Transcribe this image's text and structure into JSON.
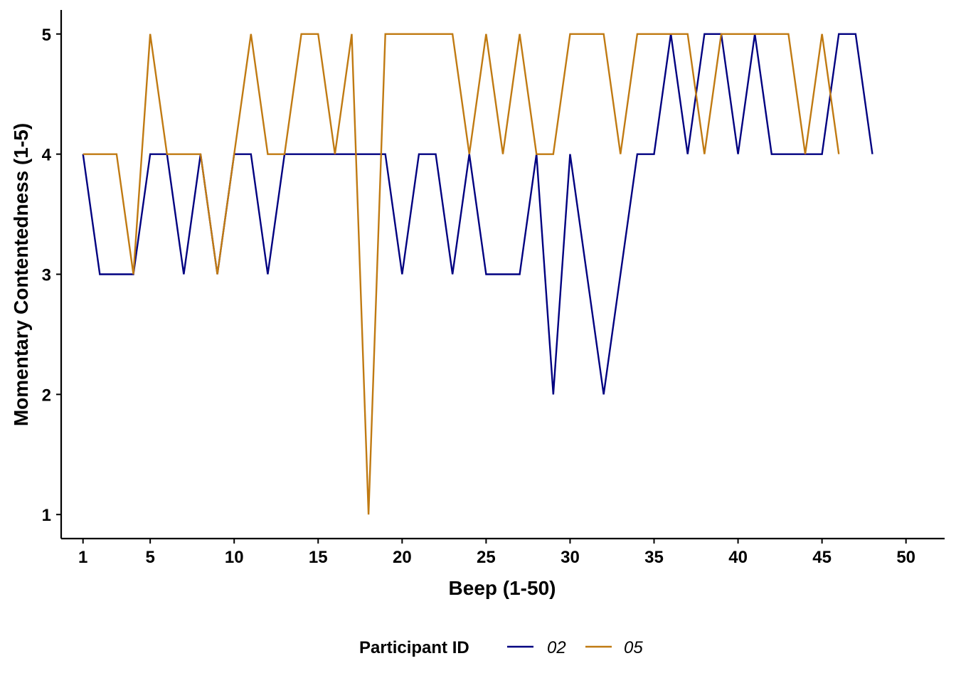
{
  "chart_data": {
    "type": "line",
    "xlabel": "Beep (1-50)",
    "ylabel": "Momentary Contentedness (1-5)",
    "x_ticks": [
      1,
      5,
      10,
      15,
      20,
      25,
      30,
      35,
      40,
      45,
      50
    ],
    "y_ticks": [
      1,
      2,
      3,
      4,
      5
    ],
    "xlim": [
      -0.3,
      52.3
    ],
    "ylim": [
      0.8,
      5.2
    ],
    "grid": false,
    "legend": {
      "title": "Participant ID",
      "position": "bottom"
    },
    "series": [
      {
        "name": "02",
        "color": "#000080",
        "x": [
          1,
          2,
          3,
          4,
          5,
          6,
          7,
          8,
          9,
          10,
          11,
          12,
          13,
          14,
          15,
          16,
          17,
          18,
          19,
          20,
          21,
          22,
          23,
          24,
          25,
          26,
          27,
          28,
          29,
          30,
          31,
          32,
          33,
          34,
          35,
          36,
          37,
          38,
          39,
          40,
          41,
          42,
          43,
          44,
          45,
          46,
          47,
          48
        ],
        "y": [
          4,
          3,
          3,
          3,
          4,
          4,
          3,
          4,
          3,
          4,
          4,
          3,
          4,
          4,
          4,
          4,
          4,
          4,
          4,
          3,
          4,
          4,
          3,
          4,
          3,
          3,
          3,
          4,
          2,
          4,
          3,
          2,
          3,
          4,
          4,
          5,
          4,
          5,
          5,
          4,
          5,
          4,
          4,
          4,
          4,
          5,
          5,
          4
        ]
      },
      {
        "name": "05",
        "color": "#C07A12",
        "x": [
          1,
          2,
          3,
          4,
          5,
          6,
          7,
          8,
          9,
          10,
          11,
          12,
          13,
          14,
          15,
          16,
          17,
          18,
          19,
          20,
          21,
          22,
          23,
          24,
          25,
          26,
          27,
          28,
          29,
          30,
          31,
          32,
          33,
          34,
          35,
          36,
          37,
          38,
          39,
          40,
          41,
          42,
          43,
          44,
          45,
          46
        ],
        "y": [
          4,
          4,
          4,
          3,
          5,
          4,
          4,
          4,
          3,
          4,
          5,
          4,
          4,
          5,
          5,
          4,
          5,
          1,
          5,
          5,
          5,
          5,
          5,
          4,
          5,
          4,
          5,
          4,
          4,
          5,
          5,
          5,
          4,
          5,
          5,
          5,
          5,
          4,
          5,
          5,
          5,
          5,
          5,
          4,
          5,
          4
        ]
      }
    ]
  }
}
